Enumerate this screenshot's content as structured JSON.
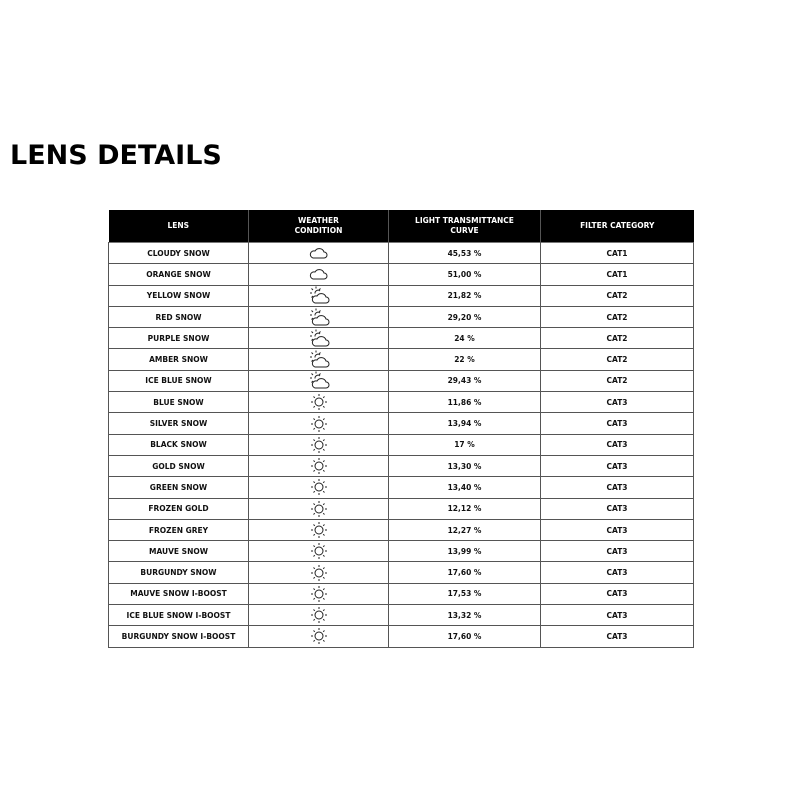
{
  "title": "LENS DETAILS",
  "table": {
    "headers": [
      "LENS",
      "WEATHER\nCONDITION",
      "LIGHT TRANSMITTANCE\nCURVE",
      "FILTER CATEGORY"
    ],
    "rows": [
      {
        "lens": "CLOUDY SNOW",
        "weather_icon": "cloud-icon",
        "transmittance": "45,53 %",
        "category": "CAT1"
      },
      {
        "lens": "ORANGE SNOW",
        "weather_icon": "cloud-icon",
        "transmittance": "51,00 %",
        "category": "CAT1"
      },
      {
        "lens": "YELLOW SNOW",
        "weather_icon": "sun-cloud-icon",
        "transmittance": "21,82 %",
        "category": "CAT2"
      },
      {
        "lens": "RED SNOW",
        "weather_icon": "sun-cloud-icon",
        "transmittance": "29,20 %",
        "category": "CAT2"
      },
      {
        "lens": "PURPLE SNOW",
        "weather_icon": "sun-cloud-icon",
        "transmittance": "24 %",
        "category": "CAT2"
      },
      {
        "lens": "AMBER SNOW",
        "weather_icon": "sun-cloud-icon",
        "transmittance": "22 %",
        "category": "CAT2"
      },
      {
        "lens": "ICE BLUE SNOW",
        "weather_icon": "sun-cloud-icon",
        "transmittance": "29,43 %",
        "category": "CAT2"
      },
      {
        "lens": "BLUE SNOW",
        "weather_icon": "sun-icon",
        "transmittance": "11,86 %",
        "category": "CAT3"
      },
      {
        "lens": "SILVER SNOW",
        "weather_icon": "sun-icon",
        "transmittance": "13,94 %",
        "category": "CAT3"
      },
      {
        "lens": "BLACK SNOW",
        "weather_icon": "sun-icon",
        "transmittance": "17 %",
        "category": "CAT3"
      },
      {
        "lens": "GOLD SNOW",
        "weather_icon": "sun-icon",
        "transmittance": "13,30 %",
        "category": "CAT3"
      },
      {
        "lens": "GREEN SNOW",
        "weather_icon": "sun-icon",
        "transmittance": "13,40 %",
        "category": "CAT3"
      },
      {
        "lens": "FROZEN GOLD",
        "weather_icon": "sun-icon",
        "transmittance": "12,12 %",
        "category": "CAT3"
      },
      {
        "lens": "FROZEN GREY",
        "weather_icon": "sun-icon",
        "transmittance": "12,27 %",
        "category": "CAT3"
      },
      {
        "lens": "MAUVE SNOW",
        "weather_icon": "sun-icon",
        "transmittance": "13,99 %",
        "category": "CAT3"
      },
      {
        "lens": "BURGUNDY SNOW",
        "weather_icon": "sun-icon",
        "transmittance": "17,60 %",
        "category": "CAT3"
      },
      {
        "lens": "MAUVE SNOW I-BOOST",
        "weather_icon": "sun-icon",
        "transmittance": "17,53 %",
        "category": "CAT3"
      },
      {
        "lens": "ICE BLUE SNOW I-BOOST",
        "weather_icon": "sun-icon",
        "transmittance": "13,32 %",
        "category": "CAT3"
      },
      {
        "lens": "BURGUNDY SNOW I-BOOST",
        "weather_icon": "sun-icon",
        "transmittance": "17,60 %",
        "category": "CAT3"
      }
    ]
  }
}
